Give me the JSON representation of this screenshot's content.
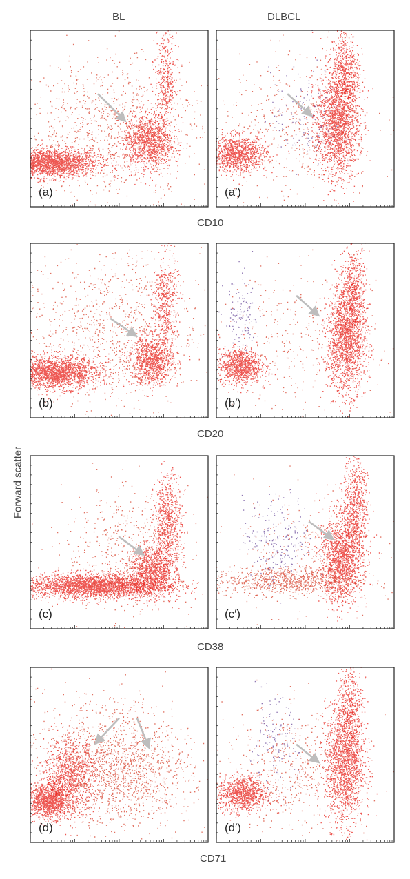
{
  "columns": [
    "BL",
    "DLBCL"
  ],
  "y_axis_label": "Forward scatter",
  "chart_data": [
    {
      "type": "scatter",
      "marker": "CD10",
      "x_scale": "log",
      "panels": [
        {
          "label": "(a)",
          "populations": [
            {
              "cx": 0.12,
              "cy": 0.25,
              "sx": 0.13,
              "sy": 0.04,
              "n": 1900,
              "color": "#e8201a"
            },
            {
              "cx": 0.66,
              "cy": 0.37,
              "sx": 0.07,
              "sy": 0.08,
              "n": 1100,
              "color": "#e8201a"
            },
            {
              "cx": 0.76,
              "cy": 0.72,
              "sx": 0.03,
              "sy": 0.14,
              "n": 380,
              "color": "#e8201a"
            },
            {
              "cx": 0.45,
              "cy": 0.45,
              "sx": 0.25,
              "sy": 0.2,
              "n": 900,
              "color": "#d7432e"
            }
          ],
          "arrows": [
            {
              "from": [
                0.38,
                0.64
              ],
              "to": [
                0.52,
                0.5
              ]
            }
          ]
        },
        {
          "label": "(a′)",
          "populations": [
            {
              "cx": 0.12,
              "cy": 0.3,
              "sx": 0.08,
              "sy": 0.05,
              "n": 1000,
              "color": "#e8201a"
            },
            {
              "cx": 0.68,
              "cy": 0.48,
              "sx": 0.06,
              "sy": 0.16,
              "n": 1700,
              "color": "#e8201a"
            },
            {
              "cx": 0.72,
              "cy": 0.78,
              "sx": 0.04,
              "sy": 0.12,
              "n": 500,
              "color": "#e8201a"
            },
            {
              "cx": 0.5,
              "cy": 0.5,
              "sx": 0.1,
              "sy": 0.14,
              "n": 140,
              "color": "#6a4a9a"
            },
            {
              "cx": 0.45,
              "cy": 0.45,
              "sx": 0.22,
              "sy": 0.2,
              "n": 450,
              "color": "#d7432e"
            }
          ],
          "arrows": [
            {
              "from": [
                0.4,
                0.64
              ],
              "to": [
                0.52,
                0.53
              ]
            }
          ]
        }
      ]
    },
    {
      "type": "scatter",
      "marker": "CD20",
      "x_scale": "log",
      "panels": [
        {
          "label": "(b)",
          "populations": [
            {
              "cx": 0.14,
              "cy": 0.26,
              "sx": 0.12,
              "sy": 0.045,
              "n": 1800,
              "color": "#e8201a"
            },
            {
              "cx": 0.68,
              "cy": 0.33,
              "sx": 0.06,
              "sy": 0.07,
              "n": 900,
              "color": "#e8201a"
            },
            {
              "cx": 0.76,
              "cy": 0.65,
              "sx": 0.035,
              "sy": 0.15,
              "n": 450,
              "color": "#e8201a"
            },
            {
              "cx": 0.45,
              "cy": 0.5,
              "sx": 0.25,
              "sy": 0.22,
              "n": 950,
              "color": "#d7432e"
            }
          ],
          "arrows": [
            {
              "from": [
                0.45,
                0.57
              ],
              "to": [
                0.58,
                0.48
              ]
            }
          ]
        },
        {
          "label": "(b′)",
          "populations": [
            {
              "cx": 0.13,
              "cy": 0.3,
              "sx": 0.06,
              "sy": 0.05,
              "n": 900,
              "color": "#e8201a"
            },
            {
              "cx": 0.73,
              "cy": 0.45,
              "sx": 0.055,
              "sy": 0.15,
              "n": 1700,
              "color": "#e8201a"
            },
            {
              "cx": 0.77,
              "cy": 0.75,
              "sx": 0.035,
              "sy": 0.12,
              "n": 450,
              "color": "#e8201a"
            },
            {
              "cx": 0.14,
              "cy": 0.56,
              "sx": 0.05,
              "sy": 0.12,
              "n": 120,
              "color": "#6a4a9a"
            },
            {
              "cx": 0.45,
              "cy": 0.45,
              "sx": 0.22,
              "sy": 0.2,
              "n": 300,
              "color": "#d7432e"
            }
          ],
          "arrows": [
            {
              "from": [
                0.45,
                0.7
              ],
              "to": [
                0.56,
                0.6
              ]
            }
          ]
        }
      ]
    },
    {
      "type": "scatter",
      "marker": "CD38",
      "x_scale": "log",
      "panels": [
        {
          "label": "(c)",
          "populations": [
            {
              "cx": 0.36,
              "cy": 0.25,
              "sx": 0.2,
              "sy": 0.035,
              "n": 2600,
              "color": "#e8201a"
            },
            {
              "cx": 0.68,
              "cy": 0.33,
              "sx": 0.06,
              "sy": 0.07,
              "n": 900,
              "color": "#e8201a"
            },
            {
              "cx": 0.77,
              "cy": 0.6,
              "sx": 0.04,
              "sy": 0.15,
              "n": 700,
              "color": "#e8201a"
            },
            {
              "cx": 0.55,
              "cy": 0.45,
              "sx": 0.18,
              "sy": 0.18,
              "n": 500,
              "color": "#d7432e"
            }
          ],
          "arrows": [
            {
              "from": [
                0.5,
                0.53
              ],
              "to": [
                0.62,
                0.44
              ]
            }
          ]
        },
        {
          "label": "(c′)",
          "populations": [
            {
              "cx": 0.7,
              "cy": 0.4,
              "sx": 0.06,
              "sy": 0.12,
              "n": 1500,
              "color": "#e8201a"
            },
            {
              "cx": 0.78,
              "cy": 0.72,
              "sx": 0.035,
              "sy": 0.14,
              "n": 600,
              "color": "#e8201a"
            },
            {
              "cx": 0.38,
              "cy": 0.28,
              "sx": 0.2,
              "sy": 0.04,
              "n": 800,
              "color": "#d7432e"
            },
            {
              "cx": 0.35,
              "cy": 0.52,
              "sx": 0.1,
              "sy": 0.12,
              "n": 200,
              "color": "#6a4a9a"
            },
            {
              "cx": 0.5,
              "cy": 0.45,
              "sx": 0.2,
              "sy": 0.2,
              "n": 250,
              "color": "#d7432e"
            }
          ],
          "arrows": [
            {
              "from": [
                0.52,
                0.62
              ],
              "to": [
                0.64,
                0.53
              ]
            }
          ]
        }
      ]
    },
    {
      "type": "scatter",
      "marker": "CD71",
      "x_scale": "log",
      "panels": [
        {
          "label": "(d)",
          "populations": [
            {
              "cx": 0.1,
              "cy": 0.24,
              "sx": 0.06,
              "sy": 0.05,
              "n": 1100,
              "color": "#e8201a"
            },
            {
              "cx": 0.22,
              "cy": 0.38,
              "sx": 0.07,
              "sy": 0.1,
              "n": 900,
              "color": "#e8201a"
            },
            {
              "cx": 0.5,
              "cy": 0.4,
              "sx": 0.2,
              "sy": 0.15,
              "n": 1400,
              "color": "#d7432e"
            },
            {
              "cx": 0.35,
              "cy": 0.65,
              "sx": 0.2,
              "sy": 0.15,
              "n": 250,
              "color": "#d7432e"
            }
          ],
          "arrows": [
            {
              "from": [
                0.5,
                0.71
              ],
              "to": [
                0.38,
                0.58
              ]
            },
            {
              "from": [
                0.6,
                0.71
              ],
              "to": [
                0.66,
                0.56
              ]
            }
          ]
        },
        {
          "label": "(d′)",
          "populations": [
            {
              "cx": 0.15,
              "cy": 0.28,
              "sx": 0.07,
              "sy": 0.05,
              "n": 900,
              "color": "#e8201a"
            },
            {
              "cx": 0.72,
              "cy": 0.45,
              "sx": 0.055,
              "sy": 0.17,
              "n": 1600,
              "color": "#e8201a"
            },
            {
              "cx": 0.75,
              "cy": 0.78,
              "sx": 0.035,
              "sy": 0.12,
              "n": 400,
              "color": "#e8201a"
            },
            {
              "cx": 0.32,
              "cy": 0.55,
              "sx": 0.07,
              "sy": 0.13,
              "n": 140,
              "color": "#6a4a9a"
            },
            {
              "cx": 0.45,
              "cy": 0.42,
              "sx": 0.2,
              "sy": 0.18,
              "n": 500,
              "color": "#d7432e"
            }
          ],
          "arrows": [
            {
              "from": [
                0.45,
                0.56
              ],
              "to": [
                0.56,
                0.47
              ]
            }
          ]
        }
      ]
    }
  ]
}
